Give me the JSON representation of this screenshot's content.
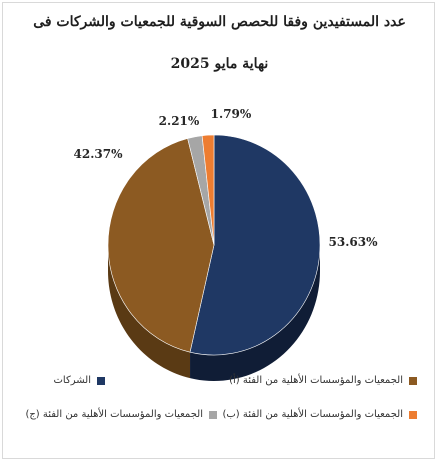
{
  "chart_data": {
    "type": "pie",
    "title_line1": "عدد المستفيدين وفقا للحصص السوقية للجمعيات والشركات فى",
    "title_line2": "نهاية مايو 2025",
    "slices": [
      {
        "name": "الشركات",
        "value": 53.63,
        "label": "53.63%",
        "color": "#1f3864",
        "side": "#101d36"
      },
      {
        "name": "الجمعيات والمؤسسات الأهلية من الفئة (أ)",
        "value": 42.37,
        "label": "42.37%",
        "color": "#8c5a22",
        "side": "#5a3a14"
      },
      {
        "name": "الجمعيات والمؤسسات الأهلية من الفئة (ج)",
        "value": 2.21,
        "label": "2.21%",
        "color": "#a6a6a6",
        "side": "#6f6f6f"
      },
      {
        "name": "الجمعيات والمؤسسات الأهلية من الفئة (ب)",
        "value": 1.79,
        "label": "1.79%",
        "color": "#ed7d31",
        "side": "#a8541c"
      }
    ],
    "legend_placement": "bottom"
  }
}
